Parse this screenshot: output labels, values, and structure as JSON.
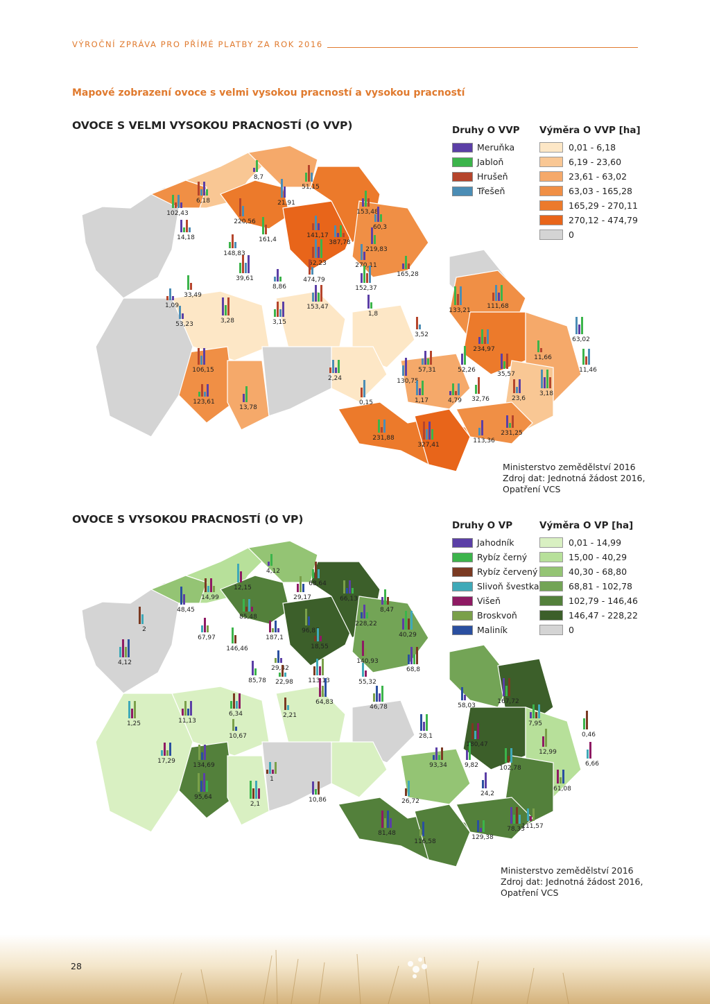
{
  "header": {
    "title": "VÝROČNÍ ZPRÁVA PRO PŘÍMÉ PLATBY ZA ROK 2016"
  },
  "section_title": "Mapové zobrazení ovoce s velmi vysokou pracností a vysokou pracností",
  "map_vvp": {
    "title": "OVOCE S VELMI VYSOKOU PRACNOSTÍ (O VVP)",
    "species_heading": "Druhy O VVP",
    "species": [
      {
        "label": "Meruňka",
        "color": "#5b3fa6"
      },
      {
        "label": "Jabloň",
        "color": "#3cb44b"
      },
      {
        "label": "Hrušeň",
        "color": "#b5452c"
      },
      {
        "label": "Třešeň",
        "color": "#4b8db5"
      }
    ],
    "area_heading": "Výměra O VVP [ha]",
    "area_classes": [
      {
        "label": "0,01 - 6,18",
        "color": "#fde7c6"
      },
      {
        "label": "6,19 - 23,60",
        "color": "#f9c794"
      },
      {
        "label": "23,61 - 63,02",
        "color": "#f5a96a"
      },
      {
        "label": "63,03 - 165,28",
        "color": "#f08f45"
      },
      {
        "label": "165,29 - 270,11",
        "color": "#ec7a2b"
      },
      {
        "label": "270,12 - 474,79",
        "color": "#e8651a"
      },
      {
        "label": "0",
        "color": "#d4d4d4"
      }
    ],
    "district_values": [
      "8,7",
      "51,15",
      "6,18",
      "21,91",
      "153,48",
      "102,43",
      "220,56",
      "60,3",
      "14,18",
      "161,4",
      "141,17",
      "387,78",
      "219,83",
      "148,83",
      "52,23",
      "270,11",
      "165,28",
      "39,61",
      "474,79",
      "8,86",
      "152,37",
      "33,49",
      "1,09",
      "153,47",
      "1,8",
      "133,21",
      "111,68",
      "53,23",
      "3,28",
      "3,15",
      "3,52",
      "63,02",
      "234,97",
      "11,66",
      "106,15",
      "57,31",
      "52,26",
      "11,46",
      "2,24",
      "130,75",
      "35,57",
      "123,61",
      "0,15",
      "1,17",
      "4,79",
      "32,76",
      "23,6",
      "3,18",
      "13,78",
      "231,88",
      "327,41",
      "113,36",
      "231,25"
    ],
    "credit": [
      "Ministerstvo zemědělství 2016",
      "Zdroj dat: Jednotná žádost 2016,",
      "Opatření VCS"
    ]
  },
  "map_vp": {
    "title": "OVOCE S VYSOKOU PRACNOSTÍ (O VP)",
    "species_heading": "Druhy O VP",
    "species": [
      {
        "label": "Jahodník",
        "color": "#5b3fa6"
      },
      {
        "label": "Rybíz černý",
        "color": "#3cb44b"
      },
      {
        "label": "Rybíz červený",
        "color": "#7a3a22"
      },
      {
        "label": "Slivoň švestka",
        "color": "#3fa9b8"
      },
      {
        "label": "Višeň",
        "color": "#8e1a63"
      },
      {
        "label": "Broskvoň",
        "color": "#7aa04a"
      },
      {
        "label": "Maliník",
        "color": "#2a4fa0"
      }
    ],
    "area_heading": "Výměra O VP [ha]",
    "area_classes": [
      {
        "label": "0,01 - 14,99",
        "color": "#d9f0c2"
      },
      {
        "label": "15,00 - 40,29",
        "color": "#b7e09a"
      },
      {
        "label": "40,30 - 68,80",
        "color": "#94c474"
      },
      {
        "label": "68,81 - 102,78",
        "color": "#73a456"
      },
      {
        "label": "102,79 - 146,46",
        "color": "#53803b"
      },
      {
        "label": "146,47 - 228,22",
        "color": "#3c5f2a"
      },
      {
        "label": "0",
        "color": "#d4d4d4"
      }
    ],
    "district_values": [
      "4,12",
      "68,64",
      "14,99",
      "12,15",
      "29,17",
      "66,13",
      "48,45",
      "8,47",
      "85,48",
      "2",
      "67,97",
      "187,1",
      "96,87",
      "228,22",
      "40,29",
      "146,46",
      "18,55",
      "4,12",
      "140,93",
      "29,42",
      "68,8",
      "85,78",
      "22,98",
      "113,13",
      "55,32",
      "64,83",
      "46,78",
      "58,03",
      "167,72",
      "6,34",
      "2,21",
      "1,25",
      "11,13",
      "10,67",
      "28,1",
      "7,95",
      "0,46",
      "180,47",
      "17,29",
      "12,99",
      "134,69",
      "93,34",
      "9,82",
      "102,78",
      "1",
      "6,66",
      "61,08",
      "95,64",
      "24,2",
      "10,86",
      "2,1",
      "26,72",
      "111,57",
      "81,48",
      "116,58",
      "129,38",
      "78,33"
    ],
    "credit": [
      "Ministerstvo zemědělství 2016",
      "Zdroj dat: Jednotná žádost 2016,",
      "Opatření VCS"
    ]
  },
  "page_number": "28"
}
